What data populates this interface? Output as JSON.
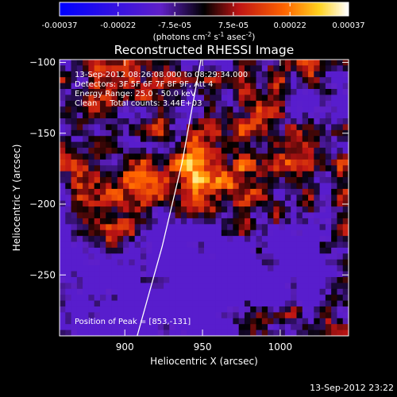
{
  "chart_data": {
    "type": "heatmap",
    "title": "Reconstructed RHESSI Image",
    "xlabel": "Heliocentric X (arcsec)",
    "ylabel": "Heliocentric Y (arcsec)",
    "xlim": [
      858,
      1044
    ],
    "ylim": [
      -293,
      -98
    ],
    "xticks": [
      900,
      950,
      1000
    ],
    "yticks": [
      -100,
      -150,
      -200,
      -250
    ],
    "colorbar": {
      "tick_labels": [
        "-0.00037",
        "-0.00022",
        "-7.5e-05",
        "7.5e-05",
        "0.00022",
        "0.00037"
      ],
      "tick_values": [
        -0.00037,
        -0.00022,
        -7.5e-05,
        7.5e-05,
        0.00022,
        0.00037
      ],
      "range": [
        -0.00037,
        0.00037
      ],
      "unit_label": "(photons cm-2 s-1 asec-2)",
      "unit_main": "(photons cm",
      "unit_exp1": "-2",
      "unit_mid1": " s",
      "unit_exp2": "-1",
      "unit_mid2": " asec",
      "unit_exp3": "-2",
      "unit_end": ")"
    },
    "info_lines": [
      "13-Sep-2012 08:26:08.000 to 08:29:34.000",
      "Detectors: 3F 5F 6F 7F 8F 9F, Att 4",
      "Energy Range: 25.0 - 50.0 keV",
      "Clean     Total counts: 3.44E+03"
    ],
    "peak_annotation": "Position of Peak = [853,-131]",
    "timestamp": "13-Sep-2012 23:22",
    "grid": false,
    "limb_curve": [
      [
        908,
        -293
      ],
      [
        924,
        -230
      ],
      [
        937,
        -170
      ],
      [
        949,
        -98
      ]
    ],
    "colors": {
      "background": "#000000",
      "limb": "#ffffff",
      "text": "#ffffff"
    }
  }
}
